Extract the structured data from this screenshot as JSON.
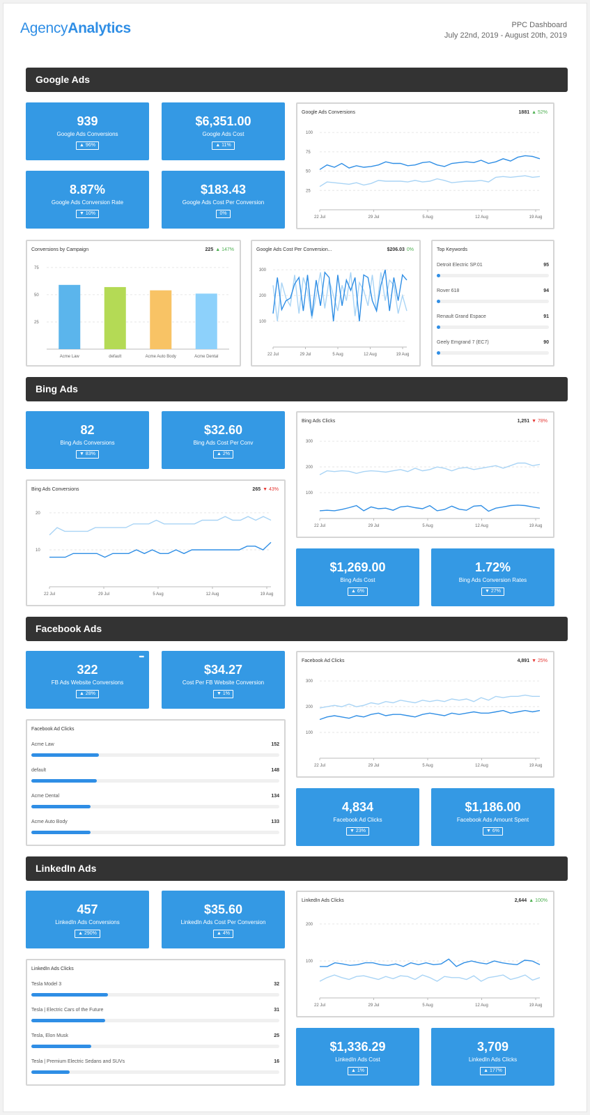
{
  "header": {
    "logo_light": "Agency",
    "logo_bold": "Analytics",
    "title": "PPC Dashboard",
    "date_range": "July 22nd, 2019 - August 20th, 2019"
  },
  "colors": {
    "accent": "#3499e4",
    "dark_line": "#2f8ee5",
    "light_line": "#a9d4f5",
    "section_bg": "#333333",
    "up": "#4caf50",
    "down": "#e53935"
  },
  "sections": {
    "google": "Google Ads",
    "bing": "Bing Ads",
    "facebook": "Facebook Ads",
    "linkedin": "LinkedIn Ads"
  },
  "kpis": {
    "g_conv": {
      "value": "939",
      "label": "Google Ads Conversions",
      "change": "▲ 96%"
    },
    "g_cost": {
      "value": "$6,351.00",
      "label": "Google Ads Cost",
      "change": "▲ 11%"
    },
    "g_rate": {
      "value": "8.87%",
      "label": "Google Ads Conversion Rate",
      "change": "▼ 10%"
    },
    "g_cpc": {
      "value": "$183.43",
      "label": "Google Ads Cost Per Conversion",
      "change": "0%"
    },
    "b_conv": {
      "value": "82",
      "label": "Bing Ads Conversions",
      "change": "▼ 83%"
    },
    "b_cpc": {
      "value": "$32.60",
      "label": "Bing Ads Cost Per Conv",
      "change": "▲ 2%"
    },
    "b_cost": {
      "value": "$1,269.00",
      "label": "Bing Ads Cost",
      "change": "▲ 6%"
    },
    "b_rate": {
      "value": "1.72%",
      "label": "Bing Ads Conversion Rates",
      "change": "▼ 27%"
    },
    "f_conv": {
      "value": "322",
      "label": "FB Ads Website Conversions",
      "change": "▲ 28%",
      "more": "•••"
    },
    "f_cpc": {
      "value": "$34.27",
      "label": "Cost Per FB Website Conversion",
      "change": "▼ 1%"
    },
    "f_clicks": {
      "value": "4,834",
      "label": "Facebook Ad Clicks",
      "change": "▼ 23%"
    },
    "f_spent": {
      "value": "$1,186.00",
      "label": "Facebook Ads Amount Spent",
      "change": "▼ 6%"
    },
    "l_conv": {
      "value": "457",
      "label": "LinkedIn Ads Conversions",
      "change": "▲ 290%"
    },
    "l_cpc": {
      "value": "$35.60",
      "label": "LinkedIn Ads Cost Per Conversion",
      "change": "▲ 4%"
    },
    "l_cost": {
      "value": "$1,336.29",
      "label": "LinkedIn Ads Cost",
      "change": "▲ 1%"
    },
    "l_clicks": {
      "value": "3,709",
      "label": "LinkedIn Ads Clicks",
      "change": "▲ 177%"
    }
  },
  "cards": {
    "g_conv_chart": {
      "title": "Google Ads Conversions",
      "total": "1881",
      "change": "▲ 52%"
    },
    "g_campaign": {
      "title": "Conversions by Campaign",
      "total": "225",
      "change": "▲ 147%"
    },
    "g_cpc_chart": {
      "title": "Google Ads Cost Per Conversion...",
      "total": "$206.03",
      "change": "0%"
    },
    "g_keywords": {
      "title": "Top Keywords"
    },
    "b_clicks_chart": {
      "title": "Bing Ads Clicks",
      "total": "1,251",
      "change": "▼ 78%"
    },
    "b_conv_chart": {
      "title": "Bing Ads Conversions",
      "total": "265",
      "change": "▼ 43%"
    },
    "f_clicks_chart": {
      "title": "Facebook Ad Clicks",
      "total": "4,891",
      "change": "▼ 25%"
    },
    "f_bars": {
      "title": "Facebook Ad Clicks"
    },
    "l_clicks_chart": {
      "title": "LinkedIn Ads Clicks",
      "total": "2,644",
      "change": "▲ 100%"
    },
    "l_bars": {
      "title": "LinkedIn Ads Clicks"
    }
  },
  "lists": {
    "keywords": [
      {
        "name": "Detroit Electric SP.01",
        "value": 95
      },
      {
        "name": "Rover 618",
        "value": 94
      },
      {
        "name": "Renault Grand Espace",
        "value": 91
      },
      {
        "name": "Geely Emgrand 7 (EC7)",
        "value": 90
      }
    ],
    "fb_campaigns": [
      {
        "name": "Acme Law",
        "value": 152
      },
      {
        "name": "default",
        "value": 148
      },
      {
        "name": "Acme Dental",
        "value": 134
      },
      {
        "name": "Acme Auto Body",
        "value": 133
      }
    ],
    "li_campaigns": [
      {
        "name": "Tesla Model 3",
        "value": 32
      },
      {
        "name": "Tesla | Electric Cars of the Future",
        "value": 31
      },
      {
        "name": "Tesla, Elon Musk",
        "value": 25
      },
      {
        "name": "Tesla | Premium Electric Sedans and SUVs",
        "value": 16
      }
    ]
  },
  "chart_data": [
    {
      "id": "g_conv",
      "type": "line",
      "title": "Google Ads Conversions",
      "x_ticks": [
        "22 Jul",
        "29 Jul",
        "5 Aug",
        "12 Aug",
        "19 Aug"
      ],
      "y_ticks": [
        25,
        50,
        75,
        100
      ],
      "ylim": [
        0,
        110
      ],
      "series": [
        {
          "role": "current",
          "values": [
            52,
            58,
            55,
            60,
            54,
            57,
            55,
            56,
            58,
            62,
            60,
            60,
            57,
            58,
            61,
            62,
            58,
            56,
            60,
            61,
            62,
            61,
            64,
            60,
            62,
            66,
            63,
            68,
            70,
            69,
            66
          ]
        },
        {
          "role": "previous",
          "values": [
            30,
            36,
            35,
            34,
            33,
            35,
            32,
            34,
            38,
            37,
            37,
            37,
            36,
            38,
            36,
            37,
            40,
            38,
            35,
            36,
            37,
            37,
            38,
            36,
            42,
            43,
            42,
            43,
            44,
            42,
            43
          ]
        }
      ]
    },
    {
      "id": "g_campaign",
      "type": "bar",
      "title": "Conversions by Campaign",
      "categories": [
        "Acme Law",
        "default",
        "Acme Auto Body",
        "Acme Dental"
      ],
      "values": [
        59,
        57,
        54,
        51
      ],
      "colors": [
        "#5bb5ec",
        "#b4da55",
        "#f8c365",
        "#8dd1fb"
      ],
      "y_ticks": [
        25,
        50,
        75
      ],
      "ylim": [
        0,
        80
      ]
    },
    {
      "id": "g_cpc",
      "type": "line",
      "title": "Google Ads Cost Per Conversion...",
      "x_ticks": [
        "22 Jul",
        "29 Jul",
        "5 Aug",
        "12 Aug",
        "19 Aug"
      ],
      "y_ticks": [
        100,
        200,
        300
      ],
      "ylim": [
        0,
        330
      ],
      "series": [
        {
          "role": "current",
          "values": [
            130,
            270,
            145,
            180,
            190,
            245,
            270,
            140,
            280,
            120,
            260,
            160,
            290,
            270,
            100,
            280,
            160,
            260,
            220,
            270,
            100,
            280,
            270,
            180,
            140,
            240,
            300,
            140,
            270,
            180,
            280,
            260
          ]
        },
        {
          "role": "previous",
          "values": [
            240,
            100,
            250,
            190,
            160,
            280,
            130,
            270,
            220,
            110,
            200,
            290,
            150,
            260,
            200,
            140,
            240,
            180,
            290,
            120,
            250,
            220,
            160,
            280,
            140,
            290,
            180,
            260,
            240,
            130,
            200,
            140
          ]
        }
      ]
    },
    {
      "id": "b_clicks",
      "type": "line",
      "title": "Bing Ads Clicks",
      "x_ticks": [
        "22 Jul",
        "29 Jul",
        "5 Aug",
        "12 Aug",
        "19 Aug"
      ],
      "y_ticks": [
        100,
        200,
        300
      ],
      "ylim": [
        0,
        330
      ],
      "series": [
        {
          "role": "current",
          "values": [
            30,
            32,
            30,
            35,
            42,
            50,
            30,
            45,
            38,
            40,
            32,
            45,
            48,
            42,
            38,
            50,
            30,
            35,
            48,
            36,
            32,
            48,
            50,
            28,
            40,
            45,
            50,
            52,
            50,
            45,
            40
          ]
        },
        {
          "role": "previous",
          "values": [
            170,
            185,
            182,
            185,
            183,
            175,
            182,
            185,
            183,
            180,
            185,
            190,
            182,
            195,
            185,
            190,
            200,
            195,
            185,
            195,
            198,
            190,
            195,
            200,
            205,
            195,
            205,
            215,
            215,
            205,
            210
          ]
        }
      ]
    },
    {
      "id": "b_conv",
      "type": "line",
      "title": "Bing Ads Conversions",
      "x_ticks": [
        "22 Jul",
        "29 Jul",
        "5 Aug",
        "12 Aug",
        "19 Aug"
      ],
      "y_ticks": [
        10,
        20
      ],
      "ylim": [
        0,
        23
      ],
      "series": [
        {
          "role": "current",
          "values": [
            8,
            8,
            8,
            9,
            9,
            9,
            9,
            8,
            9,
            9,
            9,
            10,
            9,
            10,
            9,
            9,
            10,
            9,
            10,
            10,
            10,
            10,
            10,
            10,
            10,
            11,
            11,
            10,
            12
          ]
        },
        {
          "role": "previous",
          "values": [
            14,
            16,
            15,
            15,
            15,
            15,
            16,
            16,
            16,
            16,
            16,
            17,
            17,
            17,
            18,
            17,
            17,
            17,
            17,
            17,
            18,
            18,
            18,
            19,
            18,
            18,
            19,
            18,
            19,
            18
          ]
        }
      ]
    },
    {
      "id": "f_clicks",
      "type": "line",
      "title": "Facebook Ad Clicks",
      "x_ticks": [
        "22 Jul",
        "29 Jul",
        "5 Aug",
        "12 Aug",
        "19 Aug"
      ],
      "y_ticks": [
        100,
        200,
        300
      ],
      "ylim": [
        0,
        330
      ],
      "series": [
        {
          "role": "current",
          "values": [
            150,
            160,
            165,
            160,
            155,
            165,
            160,
            170,
            175,
            165,
            170,
            170,
            165,
            160,
            170,
            175,
            170,
            165,
            175,
            170,
            175,
            180,
            175,
            175,
            180,
            185,
            175,
            180,
            185,
            180,
            185
          ]
        },
        {
          "role": "previous",
          "values": [
            195,
            200,
            205,
            200,
            210,
            200,
            205,
            215,
            210,
            220,
            215,
            225,
            220,
            215,
            225,
            220,
            225,
            220,
            230,
            225,
            230,
            220,
            235,
            225,
            240,
            235,
            240,
            240,
            245,
            240,
            240
          ]
        }
      ]
    },
    {
      "id": "l_clicks",
      "type": "line",
      "title": "LinkedIn Ads Clicks",
      "x_ticks": [
        "22 Jul",
        "29 Jul",
        "5 Aug",
        "12 Aug",
        "19 Aug"
      ],
      "y_ticks": [
        100,
        200
      ],
      "ylim": [
        0,
        230
      ],
      "series": [
        {
          "role": "current",
          "values": [
            85,
            85,
            95,
            92,
            88,
            90,
            95,
            95,
            90,
            88,
            92,
            85,
            95,
            90,
            95,
            90,
            92,
            105,
            85,
            95,
            100,
            95,
            92,
            100,
            95,
            92,
            90,
            102,
            100,
            90
          ]
        },
        {
          "role": "previous",
          "values": [
            45,
            55,
            62,
            55,
            50,
            58,
            60,
            55,
            50,
            58,
            52,
            60,
            58,
            50,
            62,
            55,
            45,
            58,
            55,
            55,
            50,
            60,
            45,
            55,
            58,
            62,
            50,
            55,
            62,
            48,
            55
          ]
        }
      ]
    }
  ]
}
